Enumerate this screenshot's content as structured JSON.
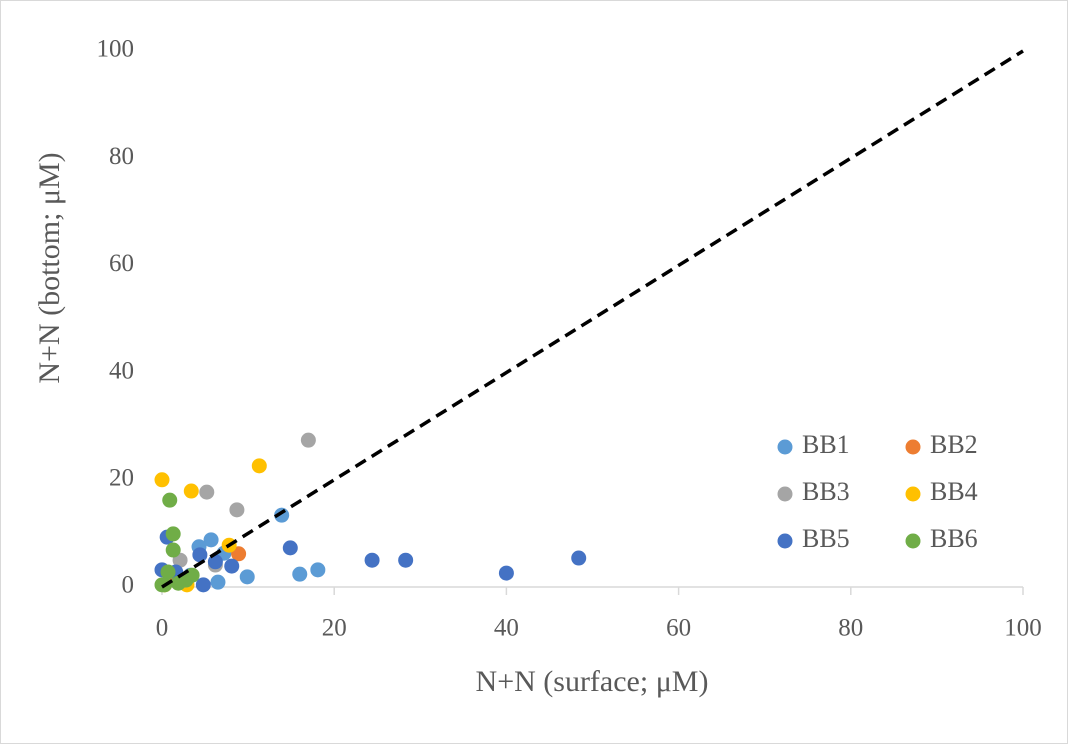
{
  "chart_data": {
    "type": "scatter",
    "x_label": "N+N (surface; μM)",
    "y_label": "N+N (bottom; μM)",
    "xlim": [
      0,
      100
    ],
    "ylim": [
      0,
      100
    ],
    "xticks": [
      0,
      20,
      40,
      60,
      80,
      100
    ],
    "yticks": [
      0,
      20,
      40,
      60,
      80,
      100
    ],
    "grid": false,
    "diagonal_line": true,
    "series": [
      {
        "name": "BB1",
        "color": "#5b9bd5",
        "x": [
          13.9,
          16.0,
          18.1,
          9.9,
          6.5,
          5.7,
          4.3,
          7.2,
          0.9,
          3.3
        ],
        "values": [
          13.4,
          2.4,
          3.2,
          1.9,
          0.9,
          8.8,
          7.5,
          6.3,
          1.3,
          2.2
        ]
      },
      {
        "name": "BB2",
        "color": "#ed7d31",
        "x": [
          8.9,
          1.5
        ],
        "values": [
          6.2,
          1.3
        ]
      },
      {
        "name": "BB3",
        "color": "#a5a5a5",
        "x": [
          17.0,
          5.2,
          8.7,
          2.1,
          6.2
        ],
        "values": [
          27.4,
          17.7,
          14.4,
          5.0,
          4.1
        ]
      },
      {
        "name": "BB4",
        "color": "#ffc000",
        "x": [
          0,
          3.4,
          11.3,
          7.8,
          2.9,
          0.3
        ],
        "values": [
          20.0,
          17.9,
          22.6,
          7.8,
          0.4,
          0.4
        ]
      },
      {
        "name": "BB5",
        "color": "#4472c4",
        "x": [
          48.4,
          40.0,
          28.3,
          24.4,
          14.9,
          8.1,
          6.2,
          4.4,
          4.8,
          0.6,
          1.6,
          2.6,
          0
        ],
        "values": [
          5.4,
          2.6,
          5.0,
          5.0,
          7.3,
          3.9,
          4.7,
          6.0,
          0.4,
          9.3,
          2.8,
          1.3,
          3.2
        ]
      },
      {
        "name": "BB6",
        "color": "#70ad47",
        "x": [
          0.9,
          1.3,
          1.3,
          2.8,
          3.5,
          0.3,
          1.9,
          0.7,
          0
        ],
        "values": [
          16.2,
          9.9,
          6.9,
          1.3,
          2.2,
          0.4,
          0.7,
          2.8,
          0.4
        ]
      }
    ]
  }
}
